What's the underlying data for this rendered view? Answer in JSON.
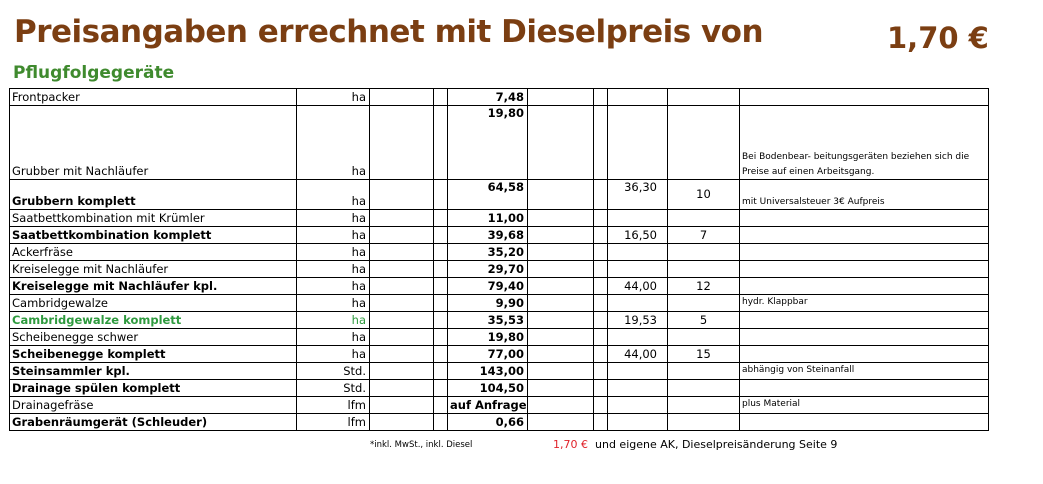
{
  "header": {
    "title": "Preisangaben errechnet mit Dieselpreis von",
    "price": "1,70 €",
    "subtitle": "Pflugfolgegeräte"
  },
  "colors": {
    "title": "#7b3e12",
    "subtitle": "#3f8a2e",
    "green_row": "#2e9a3e",
    "footer_price": "#e0222a"
  },
  "rows": [
    {
      "name": "Frontpacker",
      "unit": "ha",
      "price": "7,48",
      "c1": "",
      "c2": "",
      "note": ""
    },
    {
      "name": "Grubber mit Nachläufer",
      "unit": "ha",
      "price": "19,80",
      "c1": "",
      "c2": "",
      "note": "Bei Bodenbear- beitungsgeräten beziehen sich die Preise auf einen Arbeitsgang."
    },
    {
      "name": "Grubbern komplett",
      "unit": "ha",
      "price": "64,58",
      "c1": "36,30",
      "c2": "10",
      "note": "mit Universalsteuer 3€ Aufpreis"
    },
    {
      "name": "Saatbettkombination mit Krümler",
      "unit": "ha",
      "price": "11,00",
      "c1": "",
      "c2": "",
      "note": ""
    },
    {
      "name": "Saatbettkombination komplett",
      "unit": "ha",
      "price": "39,68",
      "c1": "16,50",
      "c2": "7",
      "note": ""
    },
    {
      "name": "Ackerfräse",
      "unit": "ha",
      "price": "35,20",
      "c1": "",
      "c2": "",
      "note": ""
    },
    {
      "name": "Kreiselegge mit Nachläufer",
      "unit": "ha",
      "price": "29,70",
      "c1": "",
      "c2": "",
      "note": ""
    },
    {
      "name": "Kreiselegge mit Nachläufer kpl.",
      "unit": "ha",
      "price": "79,40",
      "c1": "44,00",
      "c2": "12",
      "note": ""
    },
    {
      "name": "Cambridgewalze",
      "unit": "ha",
      "price": "9,90",
      "c1": "",
      "c2": "",
      "note": "hydr. Klappbar"
    },
    {
      "name": "Cambridgewalze komplett",
      "unit": "ha",
      "price": "35,53",
      "c1": "19,53",
      "c2": "5",
      "note": ""
    },
    {
      "name": "Scheibenegge schwer",
      "unit": "ha",
      "price": "19,80",
      "c1": "",
      "c2": "",
      "note": ""
    },
    {
      "name": "Scheibenegge komplett",
      "unit": "ha",
      "price": "77,00",
      "c1": "44,00",
      "c2": "15",
      "note": ""
    },
    {
      "name": "Steinsammler kpl.",
      "unit": "Std.",
      "price": "143,00",
      "c1": "",
      "c2": "",
      "note": "abhängig von Steinanfall"
    },
    {
      "name": "Drainage spülen komplett",
      "unit": "Std.",
      "price": "104,50",
      "c1": "",
      "c2": "",
      "note": ""
    },
    {
      "name": "Drainagefräse",
      "unit": "lfm",
      "price": "auf Anfrage",
      "c1": "",
      "c2": "",
      "note": "plus Material"
    },
    {
      "name": "Grabenräumgerät (Schleuder)",
      "unit": "lfm",
      "price": "0,66",
      "c1": "",
      "c2": "",
      "note": ""
    }
  ],
  "footer": {
    "vat_note": "*inkl. MwSt., inkl. Diesel",
    "price": "1,70 €",
    "text": "und eigene AK, Dieselpreisänderung Seite 9"
  }
}
